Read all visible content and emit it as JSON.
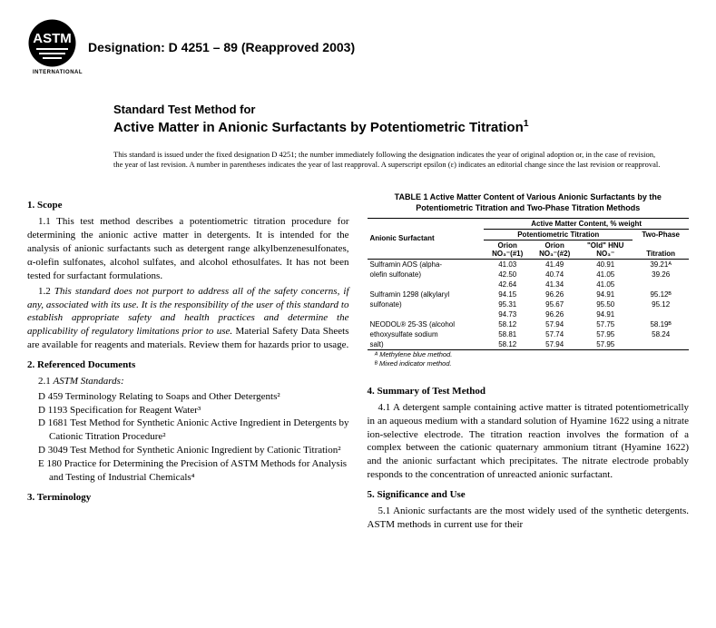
{
  "header": {
    "logo_label": "ASTM",
    "logo_sub": "INTERNATIONAL",
    "designation": "Designation: D 4251 – 89 (Reapproved 2003)"
  },
  "title": {
    "prefix": "Standard Test Method for",
    "main": "Active Matter in Anionic Surfactants by Potentiometric Titration",
    "sup": "1"
  },
  "standard_note": "This standard is issued under the fixed designation D 4251; the number immediately following the designation indicates the year of original adoption or, in the case of revision, the year of last revision. A number in parentheses indicates the year of last reapproval. A superscript epsilon (ε) indicates an editorial change since the last revision or reapproval.",
  "sections": {
    "scope": {
      "head": "1.  Scope",
      "p1": "1.1 This test method describes a potentiometric titration procedure for determining the anionic active matter in detergents. It is intended for the analysis of anionic surfactants such as detergent range alkylbenzenesulfonates, α-olefin sulfonates, alcohol sulfates, and alcohol ethosulfates. It has not been tested for surfactant formulations.",
      "p2a": "1.2 ",
      "p2b_italic": "This standard does not purport to address all of the safety concerns, if any, associated with its use. It is the responsibility of the user of this standard to establish appropriate safety and health practices and determine the applicability of regulatory limitations prior to use.",
      "p2c": " Material Safety Data Sheets are available for reagents and materials. Review them for hazards prior to usage."
    },
    "refdocs": {
      "head": "2.  Referenced Documents",
      "p1": "2.1 ",
      "p1_italic": "ASTM Standards:",
      "items": [
        "D 459 Terminology Relating to Soaps and Other Detergents²",
        "D 1193 Specification for Reagent Water³",
        "D 1681 Test Method for Synthetic Anionic Active Ingredient in Detergents by Cationic Titration Procedure²",
        "D 3049 Test Method for Synthetic Anionic Ingredient by Cationic Titration²",
        "E 180 Practice for Determining the Precision of ASTM Methods for Analysis and Testing of Industrial Chemicals⁴"
      ]
    },
    "terminology": {
      "head": "3.  Terminology"
    },
    "summary": {
      "head": "4.  Summary of Test Method",
      "p1": "4.1 A detergent sample containing active matter is titrated potentiometrically in an aqueous medium with a standard solution of Hyamine 1622 using a nitrate ion-selective electrode. The titration reaction involves the formation of a complex between the cationic quaternary ammonium titrant (Hyamine 1622) and the anionic surfactant which precipitates. The nitrate electrode probably responds to the concentration of unreacted anionic surfactant."
    },
    "sig": {
      "head": "5.  Significance and Use",
      "p1": "5.1 Anionic surfactants are the most widely used of the synthetic detergents. ASTM methods in current use for their"
    }
  },
  "table": {
    "title": "TABLE 1  Active Matter Content of Various Anionic Surfactants by the Potentiometric Titration and Two-Phase Titration Methods",
    "super_header": "Active Matter Content, % weight",
    "pot_header": "Potentiometric Titration",
    "two_header": "Two-Phase",
    "col_surfactant": "Anionic Surfactant",
    "col1": "Orion",
    "col1b": "NO₃⁻(#1)",
    "col2": "Orion",
    "col2b": "NO₃⁻(#2)",
    "col3": "\"Old\" HNU",
    "col3b": "NO₃⁻",
    "col4b": "Titration",
    "rows": [
      {
        "name": "Sulframin AOS (alpha-",
        "v1": "41.03",
        "v2": "41.49",
        "v3": "40.91",
        "v4": "39.21ᴬ"
      },
      {
        "name": "olefin sulfonate)",
        "v1": "42.50",
        "v2": "40.74",
        "v3": "41.05",
        "v4": "39.26"
      },
      {
        "name": "",
        "v1": "42.64",
        "v2": "41.34",
        "v3": "41.05",
        "v4": ""
      },
      {
        "name": "Sulframin 1298 (alkylaryl",
        "v1": "94.15",
        "v2": "96.26",
        "v3": "94.91",
        "v4": "95.12ᴮ"
      },
      {
        "name": "sulfonate)",
        "v1": "95.31",
        "v2": "95.67",
        "v3": "95.50",
        "v4": "95.12"
      },
      {
        "name": "",
        "v1": "94.73",
        "v2": "96.26",
        "v3": "94.91",
        "v4": ""
      },
      {
        "name": "NEODOL® 25-3S (alcohol",
        "v1": "58.12",
        "v2": "57.94",
        "v3": "57.75",
        "v4": "58.19ᴮ"
      },
      {
        "name": "ethoxysulfate sodium",
        "v1": "58.81",
        "v2": "57.74",
        "v3": "57.95",
        "v4": "58.24"
      },
      {
        "name": "salt)",
        "v1": "58.12",
        "v2": "57.94",
        "v3": "57.95",
        "v4": ""
      }
    ],
    "footnoteA": "ᴬ Methylene blue method.",
    "footnoteB": "ᴮ Mixed indicator method."
  },
  "colors": {
    "text": "#000000",
    "background": "#ffffff",
    "rule": "#000000"
  }
}
